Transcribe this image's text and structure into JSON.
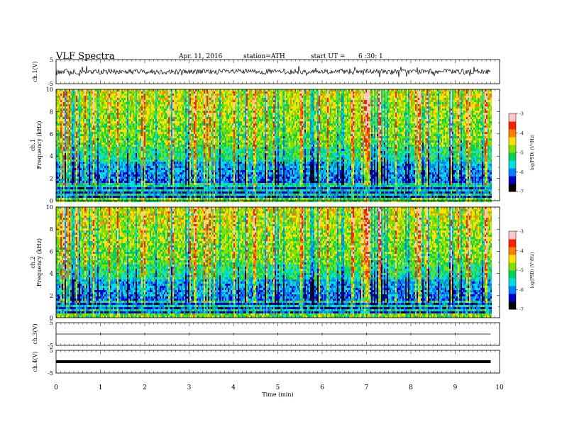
{
  "header": {
    "title": "VLF Spectra",
    "date": "Apr. 11, 2016",
    "station": "station=ATH",
    "start_label": "start UT =",
    "start_value": "6 :30: 1"
  },
  "chart_data": {
    "type": "heatmap",
    "title": "VLF Spectra",
    "x_axis": {
      "label": "Time (min)",
      "range": [
        0,
        10
      ],
      "ticks": [
        "0",
        "1",
        "2",
        "3",
        "4",
        "5",
        "6",
        "7",
        "8",
        "9",
        "10"
      ]
    },
    "panels": [
      {
        "name": "ch.1(V)",
        "type": "line",
        "ylim": [
          -5,
          5
        ],
        "ticks": [
          "5",
          "-5"
        ],
        "signal": "broadband noisy waveform around 0 V, amplitude about ±2 V, data until ~9.8 min"
      },
      {
        "name": "ch.1 Frequency (kHz)",
        "type": "heatmap",
        "ylabel_lines": [
          "ch.1",
          "Frequency (kHz)"
        ],
        "ylim": [
          0,
          10
        ],
        "ticks": [
          "0",
          "2",
          "4",
          "6",
          "8",
          "10"
        ],
        "description": "log PSD spectrogram with vertical impulsive sferic bands; dark/blue below ~4 kHz, green-yellow-red above"
      },
      {
        "name": "ch.2 Frequency (kHz)",
        "type": "heatmap",
        "ylabel_lines": [
          "ch.2",
          "Frequency (kHz)"
        ],
        "ylim": [
          0,
          10
        ],
        "ticks": [
          "0",
          "2",
          "4",
          "6",
          "8",
          "10"
        ],
        "description": "log PSD spectrogram similar to ch.1"
      },
      {
        "name": "ch.3(V)",
        "type": "line",
        "ylim": [
          -5,
          5
        ],
        "ticks": [
          "5",
          "-5"
        ],
        "signal": "flat line near 0 V"
      },
      {
        "name": "ch.4(V)",
        "type": "line",
        "ylim": [
          -5,
          5
        ],
        "ticks": [
          "5",
          "-5"
        ],
        "signal": "thick flat line near 0 V"
      }
    ],
    "colorbar": {
      "label": "log(PSD) (V²/Hz)",
      "range": [
        -7,
        -3
      ],
      "ticks": [
        "-3",
        "-4",
        "-5",
        "-6",
        "-7"
      ],
      "colors": [
        "#000000",
        "#0000c8",
        "#0080ff",
        "#00e0e0",
        "#00d060",
        "#80e000",
        "#ffe000",
        "#ff8000",
        "#ff2000",
        "#ffc8c8"
      ]
    },
    "grid": false,
    "legend": "right (colorbars)"
  }
}
